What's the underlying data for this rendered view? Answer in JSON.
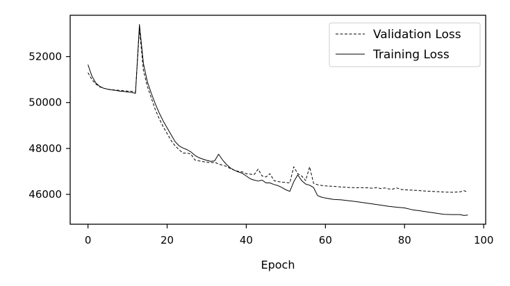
{
  "chart_data": {
    "type": "line",
    "title": "",
    "xlabel": "Epoch",
    "ylabel": "",
    "xlim": [
      -4.5,
      100.5
    ],
    "ylim": [
      44700,
      53800
    ],
    "xticks": [
      0,
      20,
      40,
      60,
      80,
      100
    ],
    "yticks": [
      46000,
      48000,
      50000,
      52000
    ],
    "grid": false,
    "legend": "top-right",
    "series": [
      {
        "name": "Validation Loss",
        "style": "dashed",
        "color": "#000000",
        "points": [
          [
            0,
            51300
          ],
          [
            1,
            51000
          ],
          [
            2,
            50800
          ],
          [
            3,
            50680
          ],
          [
            4,
            50620
          ],
          [
            5,
            50580
          ],
          [
            6,
            50560
          ],
          [
            7,
            50540
          ],
          [
            8,
            50530
          ],
          [
            9,
            50510
          ],
          [
            10,
            50500
          ],
          [
            11,
            50490
          ],
          [
            12,
            50460
          ],
          [
            13,
            53200
          ],
          [
            14,
            51400
          ],
          [
            15,
            50700
          ],
          [
            16,
            50200
          ],
          [
            17,
            49700
          ],
          [
            18,
            49300
          ],
          [
            19,
            48950
          ],
          [
            20,
            48650
          ],
          [
            21,
            48350
          ],
          [
            22,
            48120
          ],
          [
            23,
            47950
          ],
          [
            24,
            47800
          ],
          [
            25,
            47800
          ],
          [
            26,
            47760
          ],
          [
            27,
            47500
          ],
          [
            28,
            47460
          ],
          [
            29,
            47430
          ],
          [
            30,
            47400
          ],
          [
            31,
            47380
          ],
          [
            32,
            47400
          ],
          [
            33,
            47320
          ],
          [
            34,
            47270
          ],
          [
            35,
            47220
          ],
          [
            36,
            47120
          ],
          [
            37,
            47050
          ],
          [
            38,
            47000
          ],
          [
            39,
            46980
          ],
          [
            40,
            46900
          ],
          [
            41,
            46880
          ],
          [
            42,
            46860
          ],
          [
            43,
            47100
          ],
          [
            44,
            46800
          ],
          [
            45,
            46760
          ],
          [
            46,
            46900
          ],
          [
            47,
            46600
          ],
          [
            48,
            46560
          ],
          [
            49,
            46530
          ],
          [
            50,
            46520
          ],
          [
            51,
            46500
          ],
          [
            52,
            47200
          ],
          [
            53,
            46900
          ],
          [
            54,
            46800
          ],
          [
            55,
            46600
          ],
          [
            56,
            47200
          ],
          [
            57,
            46480
          ],
          [
            58,
            46420
          ],
          [
            59,
            46390
          ],
          [
            60,
            46370
          ],
          [
            62,
            46350
          ],
          [
            64,
            46320
          ],
          [
            66,
            46300
          ],
          [
            68,
            46290
          ],
          [
            70,
            46290
          ],
          [
            72,
            46270
          ],
          [
            73,
            46300
          ],
          [
            74,
            46250
          ],
          [
            75,
            46280
          ],
          [
            76,
            46240
          ],
          [
            77,
            46230
          ],
          [
            78,
            46280
          ],
          [
            79,
            46220
          ],
          [
            80,
            46200
          ],
          [
            82,
            46180
          ],
          [
            84,
            46160
          ],
          [
            86,
            46140
          ],
          [
            88,
            46120
          ],
          [
            90,
            46100
          ],
          [
            92,
            46090
          ],
          [
            93,
            46100
          ],
          [
            94,
            46110
          ],
          [
            95,
            46160
          ],
          [
            96,
            46100
          ]
        ]
      },
      {
        "name": "Training Loss",
        "style": "solid",
        "color": "#000000",
        "points": [
          [
            0,
            51650
          ],
          [
            1,
            51150
          ],
          [
            2,
            50850
          ],
          [
            3,
            50700
          ],
          [
            4,
            50620
          ],
          [
            5,
            50580
          ],
          [
            6,
            50550
          ],
          [
            7,
            50530
          ],
          [
            8,
            50500
          ],
          [
            9,
            50480
          ],
          [
            10,
            50460
          ],
          [
            11,
            50440
          ],
          [
            12,
            50400
          ],
          [
            13,
            53400
          ],
          [
            14,
            51700
          ],
          [
            15,
            50900
          ],
          [
            16,
            50400
          ],
          [
            17,
            49950
          ],
          [
            18,
            49550
          ],
          [
            19,
            49200
          ],
          [
            20,
            48900
          ],
          [
            21,
            48600
          ],
          [
            22,
            48300
          ],
          [
            23,
            48120
          ],
          [
            24,
            48020
          ],
          [
            25,
            47950
          ],
          [
            26,
            47850
          ],
          [
            27,
            47700
          ],
          [
            28,
            47600
          ],
          [
            29,
            47540
          ],
          [
            30,
            47480
          ],
          [
            31,
            47440
          ],
          [
            32,
            47460
          ],
          [
            33,
            47750
          ],
          [
            34,
            47500
          ],
          [
            35,
            47300
          ],
          [
            36,
            47150
          ],
          [
            37,
            47050
          ],
          [
            38,
            46980
          ],
          [
            39,
            46920
          ],
          [
            40,
            46800
          ],
          [
            41,
            46680
          ],
          [
            42,
            46620
          ],
          [
            43,
            46580
          ],
          [
            44,
            46620
          ],
          [
            45,
            46500
          ],
          [
            46,
            46500
          ],
          [
            47,
            46430
          ],
          [
            48,
            46380
          ],
          [
            49,
            46300
          ],
          [
            50,
            46200
          ],
          [
            51,
            46130
          ],
          [
            52,
            46550
          ],
          [
            53,
            46850
          ],
          [
            54,
            46600
          ],
          [
            55,
            46450
          ],
          [
            56,
            46400
          ],
          [
            57,
            46300
          ],
          [
            58,
            45950
          ],
          [
            59,
            45880
          ],
          [
            60,
            45840
          ],
          [
            62,
            45780
          ],
          [
            64,
            45760
          ],
          [
            66,
            45720
          ],
          [
            68,
            45680
          ],
          [
            70,
            45630
          ],
          [
            72,
            45580
          ],
          [
            74,
            45530
          ],
          [
            76,
            45480
          ],
          [
            78,
            45440
          ],
          [
            80,
            45410
          ],
          [
            82,
            45330
          ],
          [
            84,
            45280
          ],
          [
            86,
            45230
          ],
          [
            88,
            45180
          ],
          [
            90,
            45130
          ],
          [
            92,
            45120
          ],
          [
            94,
            45120
          ],
          [
            95,
            45080
          ],
          [
            96,
            45100
          ]
        ]
      }
    ]
  }
}
